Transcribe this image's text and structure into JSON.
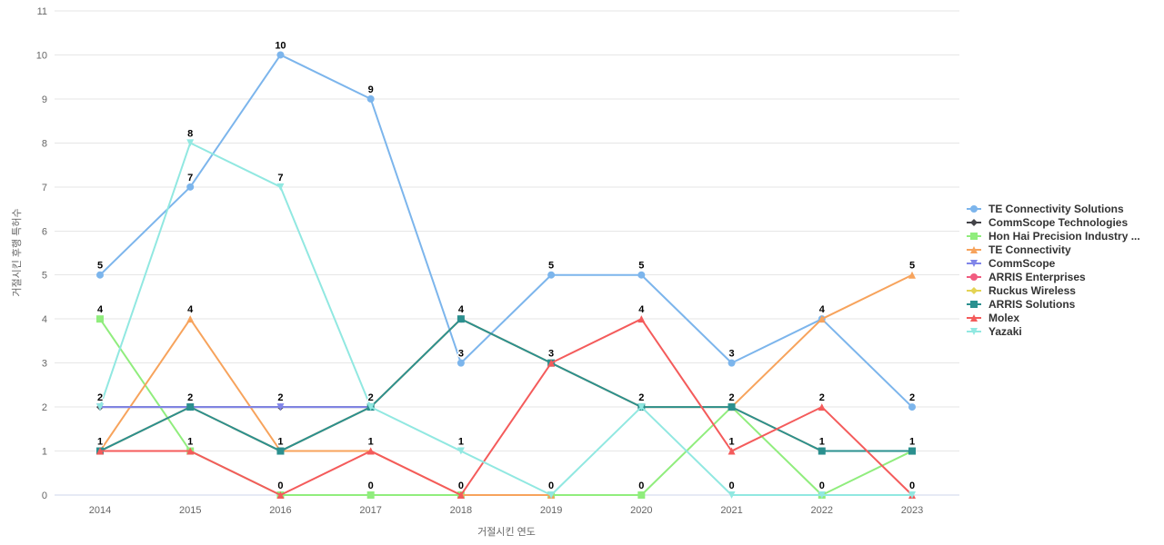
{
  "chart_data": {
    "type": "line",
    "x": [
      2014,
      2015,
      2016,
      2017,
      2018,
      2019,
      2020,
      2021,
      2022,
      2023
    ],
    "xlabel": "거절시킨 연도",
    "ylabel": "거절시킨 후행 특허수",
    "ylim": [
      0,
      11
    ],
    "ytick_step": 1,
    "grid": "horizontal",
    "legend_position": "right",
    "series": [
      {
        "name": "TE Connectivity Solutions",
        "color": "#7cb5ec",
        "marker": "circle",
        "values": [
          5,
          7,
          10,
          9,
          3,
          5,
          5,
          3,
          4,
          2
        ]
      },
      {
        "name": "CommScope Technologies",
        "color": "#434348",
        "marker": "diamond",
        "values": [
          2,
          2,
          2,
          2,
          null,
          null,
          null,
          null,
          null,
          null
        ]
      },
      {
        "name": "Hon Hai Precision Industry ...",
        "color": "#90ed7d",
        "marker": "square",
        "values": [
          4,
          1,
          0,
          0,
          0,
          0,
          0,
          2,
          0,
          1
        ]
      },
      {
        "name": "TE Connectivity",
        "color": "#f7a35c",
        "marker": "triangle",
        "values": [
          1,
          4,
          1,
          1,
          0,
          0,
          null,
          2,
          4,
          5
        ]
      },
      {
        "name": "CommScope",
        "color": "#8085e9",
        "marker": "triangle-down",
        "values": [
          2,
          2,
          2,
          2,
          null,
          null,
          null,
          null,
          null,
          null
        ]
      },
      {
        "name": "ARRIS Enterprises",
        "color": "#f15c80",
        "marker": "circle",
        "values": [
          1,
          2,
          1,
          2,
          4,
          3,
          2,
          2,
          1,
          1
        ]
      },
      {
        "name": "Ruckus Wireless",
        "color": "#e4d354",
        "marker": "diamond",
        "values": [
          1,
          2,
          1,
          2,
          4,
          3,
          2,
          2,
          1,
          1
        ]
      },
      {
        "name": "ARRIS Solutions",
        "color": "#2b908f",
        "marker": "square",
        "values": [
          1,
          2,
          1,
          2,
          4,
          3,
          2,
          2,
          1,
          1
        ]
      },
      {
        "name": "Molex",
        "color": "#f45b5b",
        "marker": "triangle",
        "values": [
          1,
          1,
          0,
          1,
          0,
          3,
          4,
          1,
          2,
          0
        ]
      },
      {
        "name": "Yazaki",
        "color": "#91e8e1",
        "marker": "triangle-down",
        "values": [
          2,
          8,
          7,
          2,
          1,
          0,
          2,
          0,
          0,
          0
        ]
      }
    ],
    "colors": {
      "grid": "#e6e6e6",
      "axis_line": "#ccd6eb",
      "tick_text": "#666666",
      "axis_title_text": "#666666",
      "legend_text": "#333333",
      "data_label_text": "#000000"
    }
  }
}
